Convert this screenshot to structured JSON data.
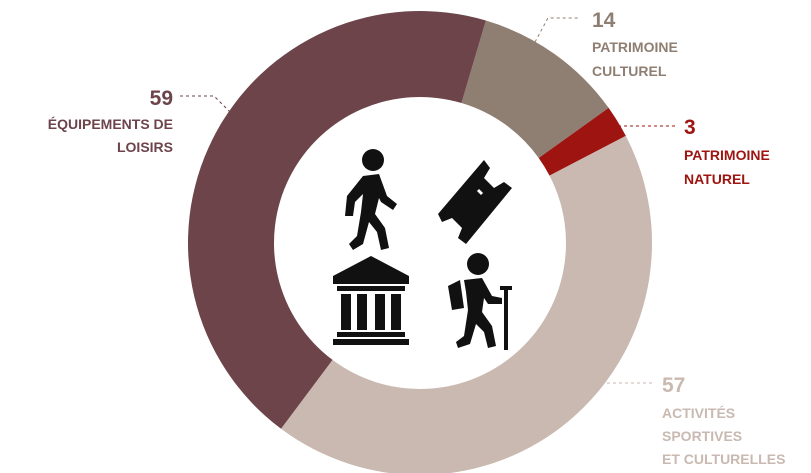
{
  "chart_data": {
    "type": "pie",
    "title": "",
    "series": [
      {
        "name": "",
        "slices": [
          {
            "label_lines": [
              "PATRIMOINE",
              "CULTUREL"
            ],
            "value": 14,
            "display": "14",
            "color": "#8f7f72"
          },
          {
            "label_lines": [
              "PATRIMOINE",
              "NATUREL"
            ],
            "value": 3,
            "display": "3",
            "color": "#9e1410"
          },
          {
            "label_lines": [
              "ACTIVITÉS",
              "SPORTIVES",
              "ET CULTURELLES"
            ],
            "value": 57,
            "display": "57",
            "color": "#c9b9b0"
          },
          {
            "label_lines": [
              "ÉQUIPEMENTS DE",
              "LOISIRS"
            ],
            "value": 59,
            "display": "59",
            "color": "#6c444a"
          }
        ]
      }
    ],
    "donut": true,
    "legend": "none",
    "icons": [
      "walking-person-icon",
      "ticket-icon",
      "museum-building-icon",
      "hiker-icon"
    ]
  }
}
